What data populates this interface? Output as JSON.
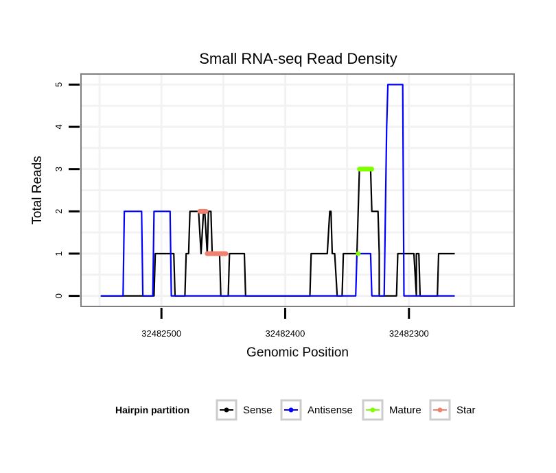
{
  "chart_data": {
    "type": "line",
    "title": "Small RNA-seq Read Density",
    "xlabel": "Genomic Position",
    "ylabel": "Total Reads",
    "x_reversed": true,
    "xlim": [
      32482565,
      32482215
    ],
    "ylim": [
      -0.25,
      5.25
    ],
    "x_ticks": [
      32482500,
      32482400,
      32482300
    ],
    "x_tick_labels": [
      "32482500",
      "32482400",
      "32482300"
    ],
    "y_ticks": [
      0,
      1,
      2,
      3,
      4,
      5
    ],
    "y_tick_labels": [
      "0",
      "1",
      "2",
      "3",
      "4",
      "5"
    ],
    "grid": true,
    "legend": {
      "title": "Hairpin partition",
      "position": "bottom",
      "entries": [
        "Sense",
        "Antisense",
        "Mature",
        "Star"
      ]
    },
    "series": [
      {
        "name": "Sense",
        "color": "#000000",
        "x": [
          32482549,
          32482506,
          32482505,
          32482490,
          32482489,
          32482481,
          32482480,
          32482478,
          32482477,
          32482470,
          32482468,
          32482466,
          32482465,
          32482463,
          32482462,
          32482460,
          32482459,
          32482457,
          32482455,
          32482453,
          32482452,
          32482446,
          32482445,
          32482433,
          32482432,
          32482380,
          32482379,
          32482366,
          32482364,
          32482363,
          32482362,
          32482360,
          32482358,
          32482354,
          32482353,
          32482342,
          32482341,
          32482340,
          32482338,
          32482337,
          32482331,
          32482330,
          32482325,
          32482324,
          32482324,
          32482320,
          32482319,
          32482310,
          32482309,
          32482307,
          32482306,
          32482296,
          32482294,
          32482294,
          32482293,
          32482292,
          32482291,
          32482277,
          32482276,
          32482263
        ],
        "y": [
          0,
          0,
          1,
          1,
          0,
          0,
          1,
          1,
          2,
          2,
          1,
          2,
          2,
          1,
          2,
          2,
          1,
          1,
          1,
          1,
          0,
          0,
          1,
          1,
          0,
          0,
          1,
          1,
          2,
          2,
          1,
          1,
          0,
          0,
          1,
          1,
          2,
          3,
          3,
          3,
          3,
          2,
          2,
          1,
          0,
          0,
          0,
          0,
          1,
          1,
          1,
          1,
          0,
          1,
          1,
          1,
          0,
          0,
          1,
          1
        ]
      },
      {
        "name": "Antisense",
        "color": "#0000ff",
        "x": [
          32482549,
          32482531,
          32482530,
          32482516,
          32482515,
          32482507,
          32482506,
          32482493,
          32482492,
          32482490,
          32482488,
          32482466,
          32482460,
          32482460,
          32482442,
          32482353,
          32482343,
          32482342,
          32482341,
          32482331,
          32482330,
          32482320,
          32482318,
          32482317,
          32482316,
          32482305,
          32482304,
          32482263
        ],
        "y": [
          0,
          0,
          2,
          2,
          0,
          0,
          2,
          2,
          0,
          0,
          0,
          0,
          0,
          0,
          0,
          0,
          0,
          1,
          1,
          1,
          0,
          0,
          4,
          5,
          5,
          5,
          0,
          0
        ]
      }
    ],
    "markers": [
      {
        "name": "Mature",
        "color": "#7fff00",
        "x": [
          32482341
        ],
        "y": [
          1
        ]
      },
      {
        "name": "Mature",
        "color": "#7fff00",
        "x": [
          32482340,
          32482330
        ],
        "y": [
          3,
          3
        ]
      },
      {
        "name": "Star",
        "color": "#f08070",
        "x": [
          32482469,
          32482464
        ],
        "y": [
          2,
          2
        ]
      },
      {
        "name": "Star",
        "color": "#f08070",
        "x": [
          32482463,
          32482448
        ],
        "y": [
          1,
          1
        ]
      }
    ]
  }
}
